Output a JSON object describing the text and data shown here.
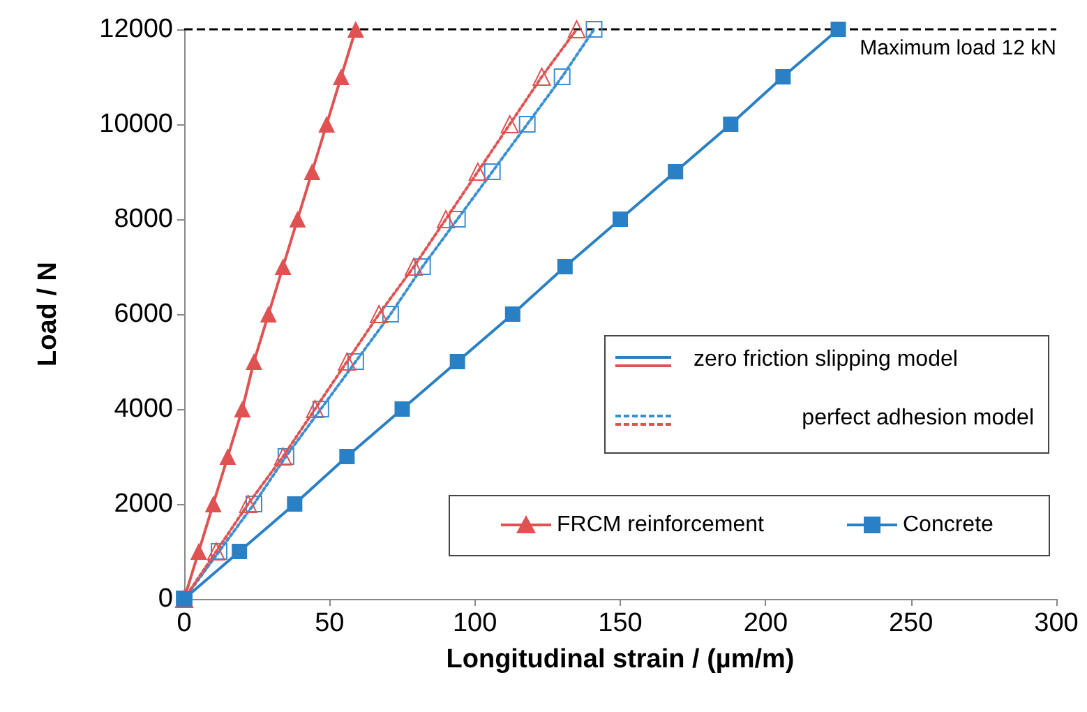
{
  "chart_data": {
    "type": "line",
    "xlabel": "Longitudinal strain / (µm/m)",
    "ylabel": "Load / N",
    "xlim": [
      0,
      300
    ],
    "xticks": [
      0,
      50,
      100,
      150,
      200,
      250,
      300
    ],
    "ylim": [
      0,
      12000
    ],
    "yticks": [
      0,
      2000,
      4000,
      6000,
      8000,
      10000,
      12000
    ],
    "grid": false,
    "legend": "right",
    "annotations": [
      "zero friction slipping model"
    ],
    "ref_lines": [
      {
        "axis": "y",
        "value": 12000,
        "label": "Maximum load 12 kN",
        "color": "#000000",
        "line_style": "dashed"
      }
    ],
    "series": [
      {
        "name": "perfect adhesion model",
        "color": "#e05252",
        "marker": "triangle",
        "line_style": "dotted",
        "x": [
          0,
          11,
          22,
          34,
          45,
          56,
          67,
          79,
          90,
          101,
          112,
          123,
          135
        ],
        "values": [
          0,
          1000,
          2000,
          3000,
          4000,
          5000,
          6000,
          7000,
          8000,
          9000,
          10000,
          11000,
          12000
        ]
      },
      {
        "color": "#3a8fd4",
        "marker": "square",
        "line_style": "dotted",
        "x": [
          0,
          12,
          24,
          35,
          47,
          59,
          71,
          82,
          94,
          106,
          118,
          130,
          141
        ],
        "values": [
          0,
          1000,
          2000,
          3000,
          4000,
          5000,
          6000,
          7000,
          8000,
          9000,
          10000,
          11000,
          12000
        ]
      },
      {
        "name": "FRCM reinforcement",
        "color": "#e05252",
        "marker": "triangle",
        "line_style": "solid",
        "x": [
          0,
          5,
          10,
          15,
          20,
          24,
          29,
          34,
          39,
          44,
          49,
          54,
          59
        ],
        "values": [
          0,
          1000,
          2000,
          3000,
          4000,
          5000,
          6000,
          7000,
          8000,
          9000,
          10000,
          11000,
          12000
        ]
      },
      {
        "name": "Concrete",
        "color": "#2a80c4",
        "marker": "square",
        "line_style": "solid",
        "x": [
          0,
          19,
          38,
          56,
          75,
          94,
          113,
          131,
          150,
          169,
          188,
          206,
          225
        ],
        "values": [
          0,
          1000,
          2000,
          3000,
          4000,
          5000,
          6000,
          7000,
          8000,
          9000,
          10000,
          11000,
          12000
        ]
      }
    ]
  }
}
